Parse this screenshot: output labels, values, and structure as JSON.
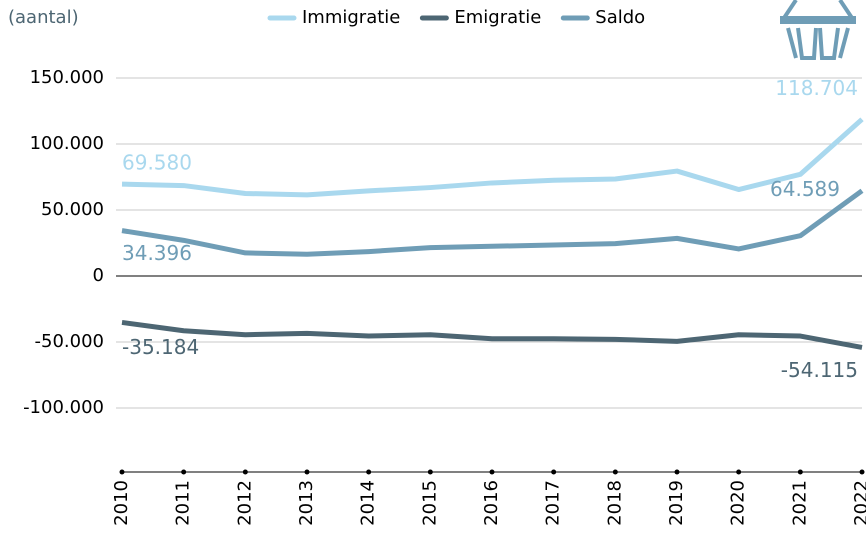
{
  "chart_data": {
    "type": "line",
    "y_label": "(aantal)",
    "x": [
      2010,
      2011,
      2012,
      2013,
      2014,
      2015,
      2016,
      2017,
      2018,
      2019,
      2020,
      2021,
      2022
    ],
    "series": [
      {
        "name": "Immigratie",
        "color": "#a9d8ee",
        "values": [
          69580,
          68500,
          62500,
          61500,
          64500,
          67000,
          70500,
          72500,
          73500,
          79500,
          65500,
          77000,
          118704
        ],
        "value_labels": [
          "69.580",
          null,
          null,
          null,
          null,
          null,
          null,
          null,
          null,
          null,
          null,
          null,
          "118.704"
        ]
      },
      {
        "name": "Emigratie",
        "color": "#4d6673",
        "values": [
          -35184,
          -41500,
          -44500,
          -43500,
          -45500,
          -44500,
          -47500,
          -47500,
          -48000,
          -49500,
          -44500,
          -45500,
          -54115
        ],
        "value_labels": [
          "-35.184",
          null,
          null,
          null,
          null,
          null,
          null,
          null,
          null,
          null,
          null,
          null,
          "-54.115"
        ]
      },
      {
        "name": "Saldo",
        "color": "#6f9db6",
        "values": [
          34396,
          27000,
          17500,
          16500,
          18500,
          21500,
          22500,
          23500,
          24500,
          28500,
          20500,
          30500,
          64589
        ],
        "value_labels": [
          "34.396",
          null,
          null,
          null,
          null,
          null,
          null,
          null,
          null,
          null,
          null,
          null,
          "64.589"
        ]
      }
    ],
    "ylim": [
      -150000,
      150000
    ],
    "yticks": [
      {
        "value": 150000,
        "label": "150.000"
      },
      {
        "value": 100000,
        "label": "100.000"
      },
      {
        "value": 50000,
        "label": "50.000"
      },
      0,
      {
        "value": -50000,
        "label": "-50.000"
      },
      {
        "value": -100000,
        "label": "-100.000"
      }
    ],
    "grid": true
  }
}
